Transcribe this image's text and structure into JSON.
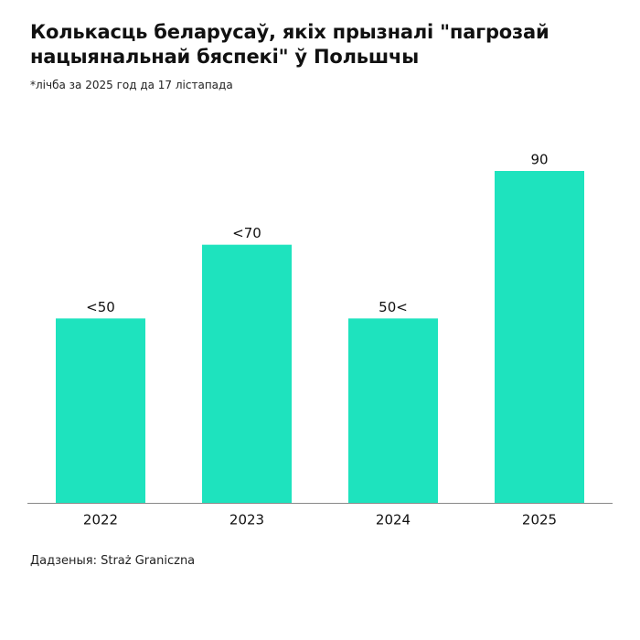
{
  "chart_data": {
    "type": "bar",
    "title": "Колькасць беларусаў, якіх прызналі \"пагрозай нацыянальнай бяспекі\" ў Польшчы",
    "subtitle": "*лічба за 2025 год да 17 лістапада",
    "categories": [
      "2022",
      "2023",
      "2024",
      "2025"
    ],
    "values": [
      50,
      70,
      50,
      90
    ],
    "value_labels": [
      "<50",
      "<70",
      "50<",
      "90"
    ],
    "color": "#1ee3be",
    "source": "Дадзеныя: Straż Graniczna"
  }
}
